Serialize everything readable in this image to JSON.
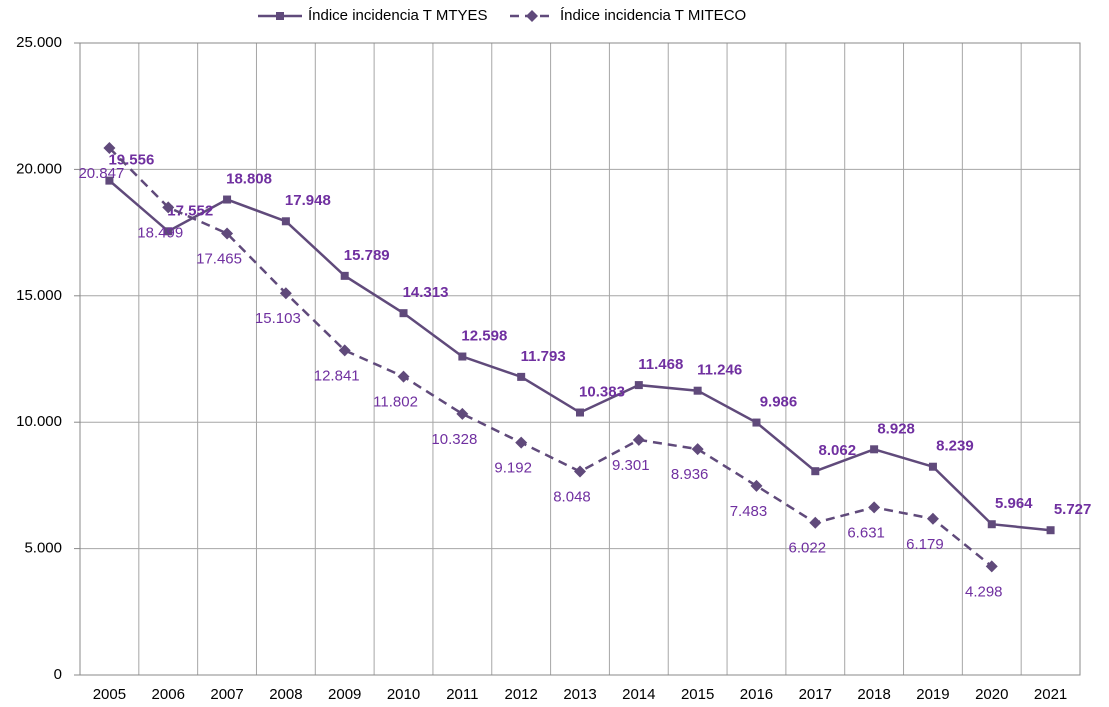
{
  "chart_data": {
    "type": "line",
    "categories": [
      "2005",
      "2006",
      "2007",
      "2008",
      "2009",
      "2010",
      "2011",
      "2012",
      "2013",
      "2014",
      "2015",
      "2016",
      "2017",
      "2018",
      "2019",
      "2020",
      "2021"
    ],
    "series": [
      {
        "name": "Índice incidencia T MTYES",
        "color": "#604a7b",
        "dash": false,
        "marker": "square",
        "values": [
          19556,
          17552,
          18808,
          17948,
          15789,
          14313,
          12598,
          11793,
          10383,
          11468,
          11246,
          9986,
          8062,
          8928,
          8239,
          5964,
          5727
        ],
        "value_labels": [
          "19.556",
          "17.552",
          "18.808",
          "17.948",
          "15.789",
          "14.313",
          "12.598",
          "11.793",
          "10.383",
          "11.468",
          "11.246",
          "9.986",
          "8.062",
          "8.928",
          "8.239",
          "5.964",
          "5.727"
        ]
      },
      {
        "name": "Índice incidencia T MITECO",
        "color": "#604a7b",
        "dash": true,
        "marker": "diamond",
        "values": [
          20847,
          18499,
          17465,
          15103,
          12841,
          11802,
          10328,
          9192,
          8048,
          9301,
          8936,
          7483,
          6022,
          6631,
          6179,
          4298,
          null
        ],
        "value_labels": [
          "20.847",
          "18.499",
          "17.465",
          "15.103",
          "12.841",
          "11.802",
          "10.328",
          "9.192",
          "8.048",
          "9.301",
          "8.936",
          "7.483",
          "6.022",
          "6.631",
          "6.179",
          "4.298",
          null
        ]
      }
    ],
    "ylim": [
      0,
      25000
    ],
    "yticks": [
      0,
      {
        "value": 5000,
        "label": "5.000"
      },
      {
        "value": 10000,
        "label": "10.000"
      },
      {
        "value": 15000,
        "label": "15.000"
      },
      {
        "value": 20000,
        "label": "20.000"
      },
      {
        "value": 25000,
        "label": "25.000"
      }
    ],
    "grid": true,
    "legend": "top"
  }
}
